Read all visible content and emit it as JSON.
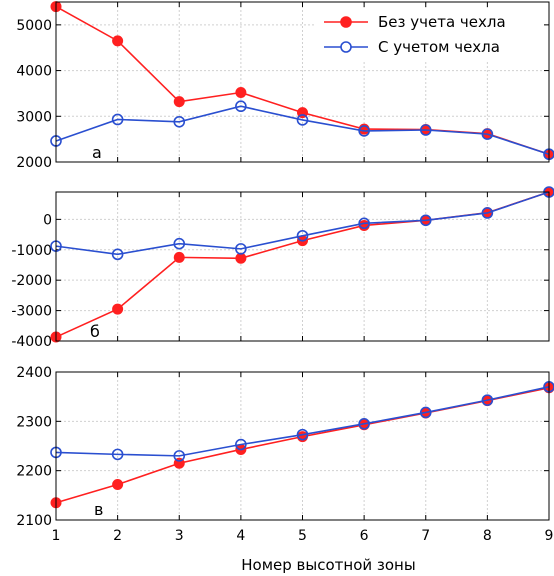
{
  "chart_data": [
    {
      "type": "line",
      "panel_label": "а",
      "x": [
        1,
        2,
        3,
        4,
        5,
        6,
        7,
        8,
        9
      ],
      "ylim": [
        2000,
        5500
      ],
      "yticks": [
        2000,
        3000,
        4000,
        5000
      ],
      "series": [
        {
          "name": "Без учета чехла",
          "color": "#ff2020",
          "marker": "filled-circle",
          "values": [
            5400,
            4650,
            3320,
            3520,
            3080,
            2720,
            2710,
            2620,
            2170
          ]
        },
        {
          "name": "С учетом чехла",
          "color": "#2a4fd0",
          "marker": "open-circle",
          "values": [
            2460,
            2930,
            2880,
            3220,
            2920,
            2680,
            2700,
            2610,
            2170
          ]
        }
      ],
      "legend": "top-right",
      "grid": true
    },
    {
      "type": "line",
      "panel_label": "б",
      "x": [
        1,
        2,
        3,
        4,
        5,
        6,
        7,
        8,
        9
      ],
      "ylim": [
        -4000,
        900
      ],
      "yticks": [
        -4000,
        -3000,
        -2000,
        -1000,
        0
      ],
      "series": [
        {
          "name": "Без учета чехла",
          "color": "#ff2020",
          "marker": "filled-circle",
          "values": [
            -3870,
            -2950,
            -1250,
            -1280,
            -700,
            -200,
            -30,
            220,
            900
          ]
        },
        {
          "name": "С учетом чехла",
          "color": "#2a4fd0",
          "marker": "open-circle",
          "values": [
            -880,
            -1150,
            -800,
            -970,
            -540,
            -130,
            -30,
            210,
            900
          ]
        }
      ],
      "grid": true
    },
    {
      "type": "line",
      "panel_label": "в",
      "x": [
        1,
        2,
        3,
        4,
        5,
        6,
        7,
        8,
        9
      ],
      "ylim": [
        2100,
        2400
      ],
      "yticks": [
        2100,
        2200,
        2300,
        2400
      ],
      "xlabel": "Номер высотной зоны",
      "series": [
        {
          "name": "Без учета чехла",
          "color": "#ff2020",
          "marker": "filled-circle",
          "values": [
            2135,
            2172,
            2215,
            2243,
            2269,
            2293,
            2317,
            2342,
            2368
          ]
        },
        {
          "name": "С учетом чехла",
          "color": "#2a4fd0",
          "marker": "open-circle",
          "values": [
            2237,
            2233,
            2230,
            2253,
            2273,
            2295,
            2318,
            2343,
            2370
          ]
        }
      ],
      "grid": true
    }
  ]
}
